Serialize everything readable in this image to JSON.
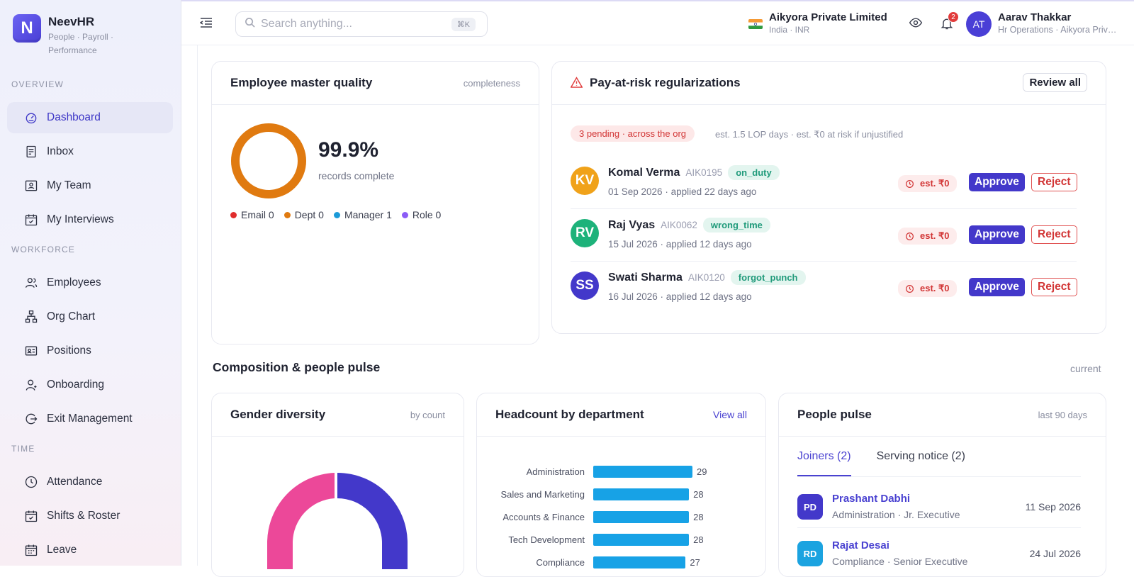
{
  "brand": {
    "name": "NeevHR",
    "tagline": "People · Payroll · Performance",
    "logo_letter": "N"
  },
  "sidebar": {
    "sections": [
      "OVERVIEW",
      "WORKFORCE",
      "TIME"
    ],
    "items": [
      {
        "label": "Dashboard",
        "icon": "dashboard-icon",
        "active": true
      },
      {
        "label": "Inbox",
        "icon": "inbox-icon"
      },
      {
        "label": "My Team",
        "icon": "team-icon"
      },
      {
        "label": "My Interviews",
        "icon": "calendar-check-icon"
      },
      {
        "label": "Employees",
        "icon": "users-icon"
      },
      {
        "label": "Org Chart",
        "icon": "org-chart-icon"
      },
      {
        "label": "Positions",
        "icon": "id-card-icon"
      },
      {
        "label": "Onboarding",
        "icon": "user-plus-icon"
      },
      {
        "label": "Exit Management",
        "icon": "exit-icon"
      },
      {
        "label": "Attendance",
        "icon": "clock-icon"
      },
      {
        "label": "Shifts & Roster",
        "icon": "calendar-icon"
      },
      {
        "label": "Leave",
        "icon": "calendar-leave-icon"
      }
    ]
  },
  "topbar": {
    "search_placeholder": "Search anything...",
    "shortcut": "⌘K",
    "org_name": "Aikyora Private Limited",
    "org_sub": "India · INR",
    "notification_count": "2",
    "user_initials": "AT",
    "user_name": "Aarav Thakkar",
    "user_sub": "Hr Operations · Aikyora Private Limited"
  },
  "quality": {
    "title": "Employee master quality",
    "meta": "completeness",
    "percent": "99.9%",
    "percent_value": 99.9,
    "sub": "records complete",
    "legend": [
      {
        "label": "Email 0",
        "color": "#e02d2d"
      },
      {
        "label": "Dept 0",
        "color": "#e07a10"
      },
      {
        "label": "Manager 1",
        "color": "#1b9ad8"
      },
      {
        "label": "Role 0",
        "color": "#8b5cf6"
      }
    ]
  },
  "risk": {
    "title": "Pay-at-risk regularizations",
    "review_label": "Review all",
    "pending": "3 pending · across the org",
    "note": "est. 1.5 LOP days · est. ₹0 at risk if unjustified",
    "approve_label": "Approve",
    "reject_label": "Reject",
    "rows": [
      {
        "initials": "KV",
        "name": "Komal Verma",
        "id": "AIK0195",
        "tag": "on_duty",
        "sub": "01 Sep 2026 · applied 22 days ago",
        "est": "est. ₹0",
        "color": "#f0a21a"
      },
      {
        "initials": "RV",
        "name": "Raj Vyas",
        "id": "AIK0062",
        "tag": "wrong_time",
        "sub": "15 Jul 2026 · applied 12 days ago",
        "est": "est. ₹0",
        "color": "#1db27a"
      },
      {
        "initials": "SS",
        "name": "Swati Sharma",
        "id": "AIK0120",
        "tag": "forgot_punch",
        "sub": "16 Jul 2026 · applied 12 days ago",
        "est": "est. ₹0",
        "color": "#4338ca"
      }
    ]
  },
  "composition": {
    "title": "Composition & people pulse",
    "meta": "current"
  },
  "gender": {
    "title": "Gender diversity",
    "meta": "by count"
  },
  "headcount": {
    "title": "Headcount by department",
    "link": "View all",
    "chart_data": {
      "type": "bar",
      "categories": [
        "Administration",
        "Sales and Marketing",
        "Accounts & Finance",
        "Tech Development",
        "Compliance"
      ],
      "values": [
        29,
        28,
        28,
        28,
        27
      ]
    }
  },
  "pulse": {
    "title": "People pulse",
    "meta": "last 90 days",
    "tabs": [
      "Joiners (2)",
      "Serving notice (2)"
    ],
    "joiners": [
      {
        "initials": "PD",
        "name": "Prashant Dabhi",
        "sub": "Administration · Jr. Executive",
        "date": "11 Sep 2026",
        "color": "#4338ca"
      },
      {
        "initials": "RD",
        "name": "Rajat Desai",
        "sub": "Compliance · Senior Executive",
        "date": "24 Jul 2026",
        "color": "#1ba3e0"
      }
    ]
  }
}
